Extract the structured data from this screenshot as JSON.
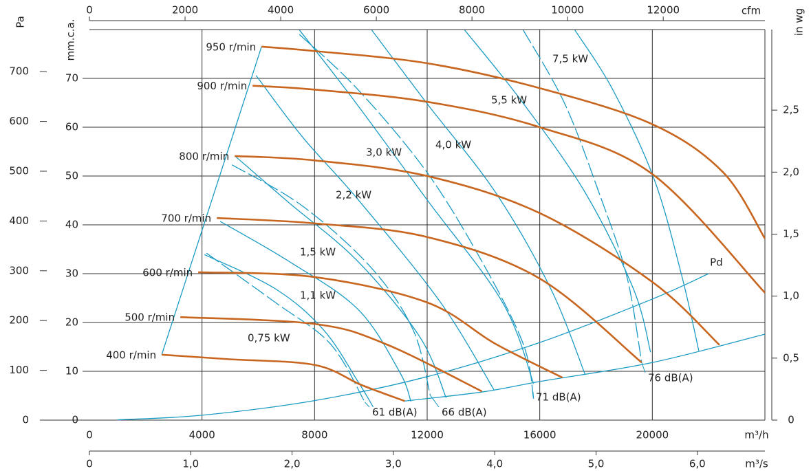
{
  "chart_data": {
    "type": "line",
    "x_label": "m³/h",
    "x2_label": "m³/s",
    "x3_label": "cfm",
    "y_label": "mm.c.a.",
    "y2_label": "Pa",
    "y3_label": "in wg",
    "xlim": [
      0,
      24000
    ],
    "xticks": [
      0,
      4000,
      8000,
      12000,
      16000,
      20000
    ],
    "x2lim": [
      0,
      6.6667
    ],
    "x2ticks": [
      0,
      {
        "value": 1,
        "label": "1,0"
      },
      {
        "value": 2,
        "label": "2,0"
      },
      {
        "value": 3,
        "label": "3,0"
      },
      {
        "value": 4,
        "label": "4,0"
      },
      {
        "value": 5,
        "label": "5,0"
      },
      {
        "value": 6,
        "label": "6,0"
      }
    ],
    "x3lim": [
      0,
      14126
    ],
    "x3ticks": [
      0,
      2000,
      4000,
      6000,
      8000,
      10000,
      12000
    ],
    "ylim": [
      0,
      80
    ],
    "yticks": [
      0,
      10,
      20,
      30,
      40,
      50,
      60,
      70
    ],
    "y2lim": [
      0,
      784.5
    ],
    "y2ticks": [
      0,
      100,
      200,
      300,
      400,
      500,
      600,
      700
    ],
    "y3lim": [
      0,
      3.1496
    ],
    "y3ticks": [
      0,
      {
        "value": 0.5,
        "label": "0,5"
      },
      {
        "value": 1,
        "label": "1,0"
      },
      {
        "value": 1.5,
        "label": "1,5"
      },
      {
        "value": 2,
        "label": "2,0"
      },
      {
        "value": 2.5,
        "label": "2,5"
      }
    ],
    "grid": true,
    "speed_curves": {
      "color": "#c8651e",
      "series": [
        {
          "name": "950 r/min",
          "x": [
            6116,
            8000,
            12000,
            16000,
            20000,
            22508,
            24000
          ],
          "values": [
            76.5,
            75.6,
            73.1,
            68.0,
            60.6,
            50.8,
            37.2
          ]
        },
        {
          "name": "900 r/min",
          "x": [
            5798,
            8000,
            12000,
            16000,
            20000,
            24000
          ],
          "values": [
            68.5,
            67.7,
            65.2,
            60.0,
            50.4,
            26.1
          ]
        },
        {
          "name": "800 r/min",
          "x": [
            5162,
            8000,
            12000,
            16000,
            20000,
            22385
          ],
          "values": [
            54.1,
            53.2,
            50.0,
            42.4,
            28.3,
            15.4
          ]
        },
        {
          "name": "700 r/min",
          "x": [
            4526,
            8000,
            12000,
            16000,
            19621
          ],
          "values": [
            41.4,
            40.3,
            37.5,
            29.0,
            11.8
          ]
        },
        {
          "name": "600 r/min",
          "x": [
            3865,
            8000,
            12000,
            14434,
            16807
          ],
          "values": [
            30.3,
            29.3,
            24.1,
            15.6,
            8.7
          ]
        },
        {
          "name": "500 r/min",
          "x": [
            3229,
            8000,
            10520,
            13945
          ],
          "values": [
            21.1,
            19.7,
            15.6,
            5.9
          ]
        },
        {
          "name": "400 r/min",
          "x": [
            2569,
            4893,
            8000,
            9663,
            11205
          ],
          "values": [
            13.4,
            12.5,
            11.3,
            7.2,
            3.9
          ]
        }
      ]
    },
    "power_curves": {
      "color": "#1a9bc4",
      "series": [
        {
          "name": "0,75 kW",
          "x": [
            4086,
            6606,
            8318,
            9541,
            10080
          ],
          "values": [
            33.9,
            26.9,
            18.5,
            7.9,
            2.7
          ]
        },
        {
          "name": "1,1 kW",
          "x": [
            4648,
            7095,
            9541,
            11009,
            11425
          ],
          "values": [
            40.7,
            32.5,
            22.7,
            10.0,
            3.8
          ]
        },
        {
          "name": "1,5 kW",
          "x": [
            5211,
            7095,
            9541,
            11743,
            12673
          ],
          "values": [
            53.9,
            44.5,
            32.5,
            17.0,
            4.6
          ]
        },
        {
          "name": "2,2 kW",
          "x": [
            5921,
            7584,
            9541,
            12477,
            14385
          ],
          "values": [
            70.6,
            57.9,
            45.2,
            24.1,
            6.1
          ]
        },
        {
          "name": "3,0 kW",
          "x": [
            7462,
            9297,
            11988,
            14679,
            15780
          ],
          "values": [
            79.9,
            66.3,
            45.2,
            24.1,
            7.5
          ]
        },
        {
          "name": "4,0 kW",
          "x": [
            10031,
            11988,
            14434,
            16392,
            17615
          ],
          "values": [
            79.9,
            64.9,
            46.6,
            26.9,
            9.3
          ]
        },
        {
          "name": "5,5 kW",
          "x": [
            13333,
            15413,
            17615,
            19327,
            19939
          ],
          "values": [
            79.9,
            64.9,
            46.6,
            26.9,
            13.9
          ]
        },
        {
          "name": "7,5 kW",
          "x": [
            17248,
            18593,
            20061,
            21040,
            21651
          ],
          "values": [
            79.9,
            67.7,
            49.4,
            29.7,
            14.2
          ]
        }
      ]
    },
    "noise_curves": {
      "color": "#1a9bc4",
      "dashed": true,
      "series": [
        {
          "name": "61 dB(A)",
          "x": [
            4159,
            6606,
            8563,
            9786
          ],
          "values": [
            34.2,
            24.1,
            15.6,
            3.7
          ]
        },
        {
          "name": "66 dB(A)",
          "x": [
            5064,
            7584,
            10031,
            11499,
            12110
          ],
          "values": [
            52.3,
            43.8,
            31.1,
            18.5,
            5.1
          ]
        },
        {
          "name": "71 dB(A)",
          "x": [
            7462,
            9541,
            11988,
            13945,
            15413,
            15780
          ],
          "values": [
            79.0,
            67.7,
            50.8,
            32.5,
            15.6,
            4.4
          ]
        },
        {
          "name": "76 dB(A)",
          "x": [
            15413,
            16881,
            18104,
            19083,
            19621
          ],
          "values": [
            79.9,
            64.9,
            46.6,
            29.7,
            11.8
          ]
        }
      ]
    },
    "pd_curve": {
      "name": "Pd",
      "color": "#1a9bc4",
      "x": [
        1000,
        4000,
        8000,
        12000,
        16000,
        20000,
        22000
      ],
      "values": [
        0.06,
        1.0,
        4.0,
        8.9,
        15.9,
        24.8,
        30.0
      ]
    },
    "boundary": {
      "color": "#1a9bc4",
      "x": [
        11200,
        14000,
        16000,
        20000,
        24000
      ],
      "values": [
        3.9,
        5.8,
        7.9,
        11.8,
        17.6
      ]
    },
    "surge_line": {
      "color": "#1a9bc4",
      "x": [
        2569,
        6116
      ],
      "values": [
        13.4,
        76.5
      ]
    }
  }
}
